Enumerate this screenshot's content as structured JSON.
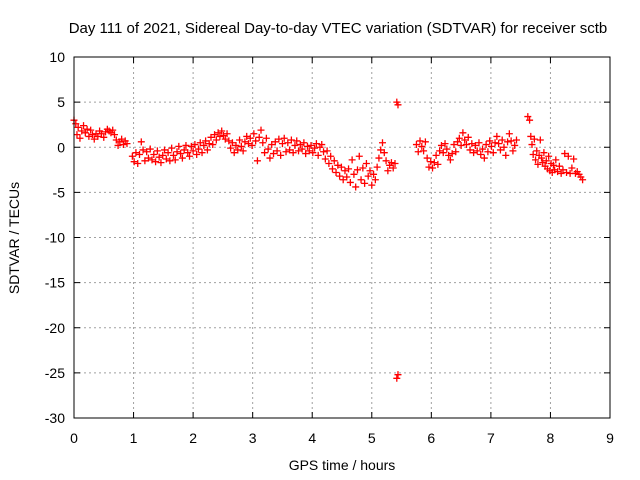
{
  "chart_data": {
    "type": "scatter",
    "title": "Day 111 of 2021, Sidereal Day-to-day VTEC variation (SDTVAR) for receiver sctb",
    "xlabel": "GPS time / hours",
    "ylabel": "SDTVAR / TECUs",
    "xlim": [
      0,
      9
    ],
    "ylim": [
      -30,
      10
    ],
    "xticks": [
      "0",
      "1",
      "2",
      "3",
      "4",
      "5",
      "6",
      "7",
      "8",
      "9"
    ],
    "yticks": [
      "-30",
      "-25",
      "-20",
      "-15",
      "-10",
      "-5",
      "0",
      "5",
      "10"
    ],
    "grid": true,
    "marker": "+",
    "color": "#ff0000",
    "series": [
      {
        "name": "sctb",
        "points": [
          [
            0.0,
            3.0
          ],
          [
            0.03,
            2.6
          ],
          [
            0.05,
            1.4
          ],
          [
            0.07,
            2.2
          ],
          [
            0.1,
            1.0
          ],
          [
            0.13,
            1.8
          ],
          [
            0.16,
            2.4
          ],
          [
            0.19,
            1.6
          ],
          [
            0.22,
            2.0
          ],
          [
            0.25,
            1.2
          ],
          [
            0.28,
            1.9
          ],
          [
            0.31,
            1.4
          ],
          [
            0.34,
            0.9
          ],
          [
            0.37,
            1.5
          ],
          [
            0.4,
            1.2
          ],
          [
            0.43,
            1.8
          ],
          [
            0.46,
            1.5
          ],
          [
            0.5,
            1.1
          ],
          [
            0.53,
            1.7
          ],
          [
            0.56,
            2.0
          ],
          [
            0.59,
            1.8
          ],
          [
            0.62,
            1.6
          ],
          [
            0.65,
            1.9
          ],
          [
            0.68,
            1.4
          ],
          [
            0.71,
            0.8
          ],
          [
            0.74,
            0.2
          ],
          [
            0.77,
            0.6
          ],
          [
            0.8,
            0.9
          ],
          [
            0.83,
            0.3
          ],
          [
            0.86,
            0.7
          ],
          [
            0.89,
            0.4
          ],
          [
            0.98,
            -1.0
          ],
          [
            1.01,
            -1.6
          ],
          [
            1.04,
            -0.6
          ],
          [
            1.07,
            -1.8
          ],
          [
            1.1,
            -0.8
          ],
          [
            1.13,
            0.6
          ],
          [
            1.16,
            -0.3
          ],
          [
            1.19,
            -1.5
          ],
          [
            1.22,
            -0.5
          ],
          [
            1.25,
            -1.2
          ],
          [
            1.28,
            -0.2
          ],
          [
            1.31,
            -1.4
          ],
          [
            1.34,
            -0.8
          ],
          [
            1.37,
            -1.6
          ],
          [
            1.4,
            -0.4
          ],
          [
            1.43,
            -1.1
          ],
          [
            1.46,
            -1.7
          ],
          [
            1.49,
            -0.9
          ],
          [
            1.52,
            -0.3
          ],
          [
            1.55,
            -1.3
          ],
          [
            1.58,
            -0.6
          ],
          [
            1.61,
            -1.5
          ],
          [
            1.64,
            -0.1
          ],
          [
            1.67,
            -0.9
          ],
          [
            1.7,
            -1.4
          ],
          [
            1.73,
            -0.5
          ],
          [
            1.76,
            0.1
          ],
          [
            1.79,
            -0.7
          ],
          [
            1.82,
            -1.2
          ],
          [
            1.85,
            -0.3
          ],
          [
            1.88,
            0.2
          ],
          [
            1.91,
            -0.6
          ],
          [
            1.94,
            -1.0
          ],
          [
            1.97,
            0.1
          ],
          [
            2.0,
            -0.4
          ],
          [
            2.03,
            0.3
          ],
          [
            2.06,
            -0.8
          ],
          [
            2.09,
            -0.2
          ],
          [
            2.12,
            0.5
          ],
          [
            2.15,
            -0.6
          ],
          [
            2.18,
            0.2
          ],
          [
            2.21,
            0.7
          ],
          [
            2.24,
            -0.3
          ],
          [
            2.27,
            0.4
          ],
          [
            2.3,
            1.1
          ],
          [
            2.33,
            0.3
          ],
          [
            2.36,
            1.4
          ],
          [
            2.39,
            0.8
          ],
          [
            2.42,
            1.6
          ],
          [
            2.45,
            1.2
          ],
          [
            2.48,
            1.8
          ],
          [
            2.51,
            1.3
          ],
          [
            2.54,
            0.9
          ],
          [
            2.57,
            1.5
          ],
          [
            2.6,
            0.7
          ],
          [
            2.63,
            -0.1
          ],
          [
            2.66,
            0.5
          ],
          [
            2.69,
            -0.6
          ],
          [
            2.72,
            0.2
          ],
          [
            2.75,
            -0.3
          ],
          [
            2.78,
            0.8
          ],
          [
            2.81,
            0.1
          ],
          [
            2.84,
            -0.4
          ],
          [
            2.87,
            0.6
          ],
          [
            2.9,
            1.2
          ],
          [
            2.93,
            0.4
          ],
          [
            2.96,
            1.0
          ],
          [
            2.99,
            0.2
          ],
          [
            3.02,
            1.5
          ],
          [
            3.05,
            0.7
          ],
          [
            3.08,
            -1.5
          ],
          [
            3.11,
            1.1
          ],
          [
            3.14,
            1.9
          ],
          [
            3.17,
            0.5
          ],
          [
            3.2,
            -0.6
          ],
          [
            3.23,
            1.0
          ],
          [
            3.26,
            -0.2
          ],
          [
            3.29,
            -1.2
          ],
          [
            3.32,
            0.3
          ],
          [
            3.35,
            -0.7
          ],
          [
            3.38,
            0.6
          ],
          [
            3.41,
            -0.4
          ],
          [
            3.44,
            0.9
          ],
          [
            3.47,
            -0.9
          ],
          [
            3.5,
            0.4
          ],
          [
            3.53,
            1.0
          ],
          [
            3.56,
            -0.5
          ],
          [
            3.59,
            0.5
          ],
          [
            3.62,
            -0.3
          ],
          [
            3.65,
            0.8
          ],
          [
            3.68,
            -0.6
          ],
          [
            3.71,
            0.2
          ],
          [
            3.74,
            0.7
          ],
          [
            3.77,
            -0.4
          ],
          [
            3.8,
            0.3
          ],
          [
            3.83,
            -0.2
          ],
          [
            3.86,
            0.5
          ],
          [
            3.89,
            -0.7
          ],
          [
            3.92,
            0.1
          ],
          [
            3.95,
            -0.4
          ],
          [
            3.98,
            0.2
          ],
          [
            4.01,
            -0.6
          ],
          [
            4.04,
            -0.1
          ],
          [
            4.07,
            0.4
          ],
          [
            4.1,
            -0.9
          ],
          [
            4.13,
            0.0
          ],
          [
            4.16,
            0.3
          ],
          [
            4.19,
            -0.5
          ],
          [
            4.22,
            -1.3
          ],
          [
            4.25,
            -0.4
          ],
          [
            4.28,
            -1.8
          ],
          [
            4.31,
            -1.0
          ],
          [
            4.34,
            -2.4
          ],
          [
            4.37,
            -1.5
          ],
          [
            4.4,
            -2.8
          ],
          [
            4.43,
            -2.0
          ],
          [
            4.46,
            -3.2
          ],
          [
            4.49,
            -2.2
          ],
          [
            4.52,
            -3.6
          ],
          [
            4.55,
            -2.6
          ],
          [
            4.58,
            -3.3
          ],
          [
            4.61,
            -2.4
          ],
          [
            4.64,
            -3.9
          ],
          [
            4.67,
            -1.4
          ],
          [
            4.7,
            -3.0
          ],
          [
            4.73,
            -4.4
          ],
          [
            4.76,
            -2.5
          ],
          [
            4.79,
            -1.0
          ],
          [
            4.82,
            -3.6
          ],
          [
            4.85,
            -2.3
          ],
          [
            4.88,
            -4.0
          ],
          [
            4.91,
            -1.8
          ],
          [
            4.94,
            -3.2
          ],
          [
            4.97,
            -2.6
          ],
          [
            5.0,
            -4.2
          ],
          [
            5.03,
            -3.0
          ],
          [
            5.06,
            -3.6
          ],
          [
            5.09,
            -2.2
          ],
          [
            5.12,
            -1.2
          ],
          [
            5.15,
            -0.3
          ],
          [
            5.18,
            0.5
          ],
          [
            5.21,
            -0.6
          ],
          [
            5.24,
            -1.5
          ],
          [
            5.27,
            -2.6
          ],
          [
            5.3,
            -2.0
          ],
          [
            5.33,
            -1.7
          ],
          [
            5.36,
            -2.3
          ],
          [
            5.39,
            -1.8
          ],
          [
            5.42,
            5.0
          ],
          [
            5.44,
            4.7
          ],
          [
            5.42,
            -25.6
          ],
          [
            5.44,
            -25.2
          ],
          [
            5.75,
            0.3
          ],
          [
            5.78,
            -0.5
          ],
          [
            5.81,
            0.7
          ],
          [
            5.84,
            0.1
          ],
          [
            5.87,
            -0.4
          ],
          [
            5.9,
            0.6
          ],
          [
            5.93,
            -1.2
          ],
          [
            5.96,
            -2.2
          ],
          [
            5.99,
            -1.6
          ],
          [
            6.02,
            -2.3
          ],
          [
            6.05,
            -1.7
          ],
          [
            6.08,
            -0.9
          ],
          [
            6.11,
            -1.9
          ],
          [
            6.14,
            -0.4
          ],
          [
            6.17,
            0.2
          ],
          [
            6.2,
            -0.6
          ],
          [
            6.23,
            0.4
          ],
          [
            6.26,
            -0.2
          ],
          [
            6.29,
            -0.9
          ],
          [
            6.32,
            -1.4
          ],
          [
            6.35,
            -0.7
          ],
          [
            6.38,
            0.3
          ],
          [
            6.41,
            -0.5
          ],
          [
            6.44,
            0.6
          ],
          [
            6.47,
            1.0
          ],
          [
            6.5,
            0.2
          ],
          [
            6.53,
            1.6
          ],
          [
            6.56,
            0.8
          ],
          [
            6.59,
            0.3
          ],
          [
            6.62,
            1.1
          ],
          [
            6.65,
            -0.3
          ],
          [
            6.68,
            0.4
          ],
          [
            6.71,
            -0.6
          ],
          [
            6.74,
            0.2
          ],
          [
            6.77,
            -0.4
          ],
          [
            6.8,
            0.5
          ],
          [
            6.83,
            -0.8
          ],
          [
            6.86,
            -0.2
          ],
          [
            6.89,
            -1.2
          ],
          [
            6.92,
            0.3
          ],
          [
            6.95,
            -0.5
          ],
          [
            6.98,
            0.7
          ],
          [
            7.01,
            0.1
          ],
          [
            7.04,
            -0.6
          ],
          [
            7.07,
            0.5
          ],
          [
            7.1,
            1.2
          ],
          [
            7.13,
            0.4
          ],
          [
            7.16,
            -0.3
          ],
          [
            7.19,
            0.8
          ],
          [
            7.22,
            0.0
          ],
          [
            7.25,
            -0.9
          ],
          [
            7.28,
            0.6
          ],
          [
            7.31,
            1.5
          ],
          [
            7.34,
            0.7
          ],
          [
            7.37,
            -0.4
          ],
          [
            7.4,
            0.2
          ],
          [
            7.43,
            0.8
          ],
          [
            7.62,
            3.4
          ],
          [
            7.65,
            3.0
          ],
          [
            7.67,
            1.2
          ],
          [
            7.69,
            0.3
          ],
          [
            7.71,
            -0.8
          ],
          [
            7.73,
            0.9
          ],
          [
            7.75,
            -1.4
          ],
          [
            7.77,
            -0.4
          ],
          [
            7.79,
            -1.9
          ],
          [
            7.81,
            -0.9
          ],
          [
            7.83,
            0.8
          ],
          [
            7.85,
            -1.2
          ],
          [
            7.87,
            -1.7
          ],
          [
            7.89,
            -0.6
          ],
          [
            7.91,
            -2.1
          ],
          [
            7.93,
            -1.5
          ],
          [
            7.95,
            -2.4
          ],
          [
            7.97,
            -1.0
          ],
          [
            7.99,
            -2.6
          ],
          [
            8.01,
            -1.8
          ],
          [
            8.03,
            -2.8
          ],
          [
            8.05,
            -2.0
          ],
          [
            8.07,
            -2.5
          ],
          [
            8.09,
            -1.4
          ],
          [
            8.12,
            -2.7
          ],
          [
            8.15,
            -2.1
          ],
          [
            8.18,
            -2.9
          ],
          [
            8.21,
            -2.5
          ],
          [
            8.24,
            -0.7
          ],
          [
            8.27,
            -2.8
          ],
          [
            8.3,
            -1.0
          ],
          [
            8.33,
            -2.9
          ],
          [
            8.36,
            -2.3
          ],
          [
            8.39,
            -1.3
          ],
          [
            8.42,
            -2.9
          ],
          [
            8.45,
            -2.7
          ],
          [
            8.48,
            -3.0
          ],
          [
            8.51,
            -3.3
          ],
          [
            8.54,
            -3.6
          ]
        ]
      }
    ]
  }
}
